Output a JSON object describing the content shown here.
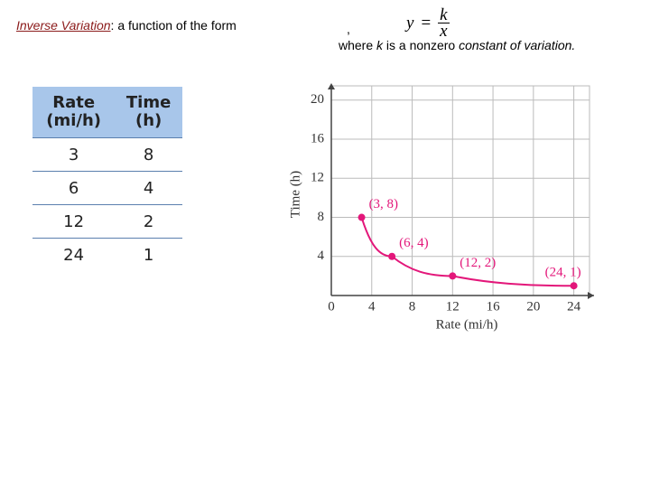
{
  "header": {
    "term": "Inverse Variation",
    "intro": ":  a function of the form",
    "comma": ",",
    "formula": {
      "y": "y",
      "equals": "=",
      "numerator": "k",
      "denominator": "x"
    },
    "where": "where",
    "k": "k",
    "middle": "is a nonzero",
    "emphasis": "constant of variation."
  },
  "table": {
    "columns": [
      [
        "Rate",
        "(mi/h)"
      ],
      [
        "Time",
        "(h)"
      ]
    ],
    "rows": [
      [
        "3",
        "8"
      ],
      [
        "6",
        "4"
      ],
      [
        "12",
        "2"
      ],
      [
        "24",
        "1"
      ]
    ]
  },
  "chart_data": {
    "type": "line",
    "x_label": "Rate (mi/h)",
    "y_label": "Time (h)",
    "x": [
      3,
      6,
      12,
      24
    ],
    "values": [
      8,
      4,
      2,
      1
    ],
    "point_labels": [
      "(3, 8)",
      "(6, 4)",
      "(12, 2)",
      "(24, 1)"
    ],
    "color": "#e3177a",
    "xlim": [
      0,
      26
    ],
    "ylim": [
      0,
      21
    ],
    "xticks": [
      0,
      4,
      8,
      12,
      16,
      20,
      24
    ],
    "yticks": [
      4,
      8,
      12,
      16,
      20
    ],
    "grid": true
  }
}
